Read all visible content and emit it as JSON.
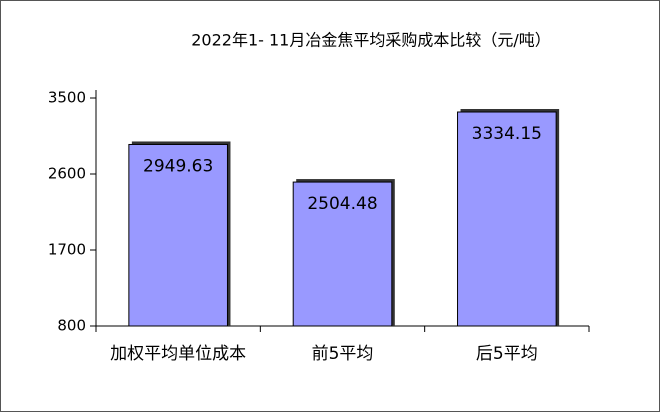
{
  "chart_data": {
    "type": "bar",
    "title": "2022年1- 11月冶金焦平均采购成本比较（元/吨）",
    "categories": [
      "加权平均单位成本",
      "前5平均",
      "后5平均"
    ],
    "values": [
      2949.63,
      2504.48,
      3334.15
    ],
    "color": "#9999ff",
    "ylim": [
      800,
      3500
    ],
    "yticks": [
      800,
      1700,
      2600,
      3500
    ]
  }
}
